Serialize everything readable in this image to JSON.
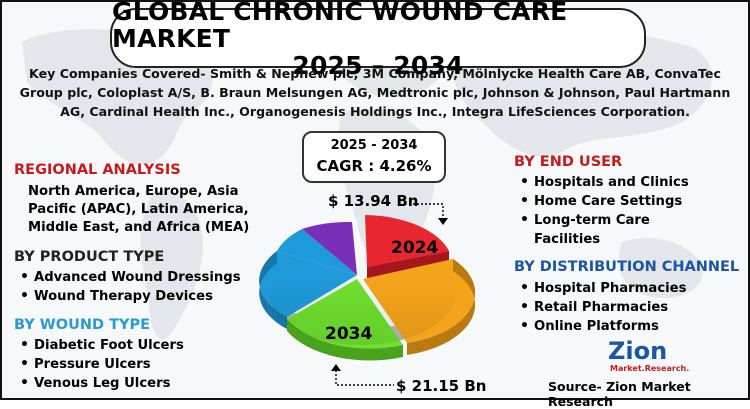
{
  "title": {
    "line1": "GLOBAL CHRONIC WOUND CARE MARKET",
    "line2": "2025 – 2034"
  },
  "companies_text": "Key Companies Covered- Smith & Nephew plc, 3M Company, Mölnlycke Health Care AB, ConvaTec Group plc, Coloplast A/S, B. Braun Melsungen AG, Medtronic plc, Johnson & Johnson, Paul Hartmann AG, Cardinal Health Inc., Organogenesis Holdings Inc., Integra LifeSciences Corporation.",
  "cagr": {
    "years": "2025 - 2034",
    "value": "CAGR : 4.26%"
  },
  "regional": {
    "heading": "REGIONAL ANALYSIS",
    "text": "North America, Europe, Asia Pacific (APAC), Latin America, Middle East, and Africa (MEA)"
  },
  "product_type": {
    "heading": "BY PRODUCT TYPE",
    "items": [
      "Advanced Wound Dressings",
      "Wound Therapy Devices"
    ]
  },
  "wound_type": {
    "heading": "BY WOUND TYPE",
    "items": [
      "Diabetic Foot Ulcers",
      "Pressure Ulcers",
      "Venous Leg Ulcers"
    ]
  },
  "end_user": {
    "heading": "BY END USER",
    "items": [
      "Hospitals and Clinics",
      "Home Care Settings",
      "Long-term Care Facilities"
    ]
  },
  "distribution": {
    "heading": "BY DISTRIBUTION CHANNEL",
    "items": [
      "Hospital Pharmacies",
      "Retail Pharmacies",
      "Online Platforms"
    ]
  },
  "chart": {
    "label_2024": "2024",
    "label_2034": "2034",
    "value_2024": "$ 13.94 Bn",
    "value_2034": "$ 21.15 Bn",
    "colors": {
      "red": "#e8262f",
      "orange": "#f4a41b",
      "green": "#6fe02f",
      "blue": "#1f9ad8",
      "purple": "#7a2fb8"
    }
  },
  "logo": {
    "main": "Zion",
    "sub": "Market.Research."
  },
  "source": "Source- Zion Market Research"
}
